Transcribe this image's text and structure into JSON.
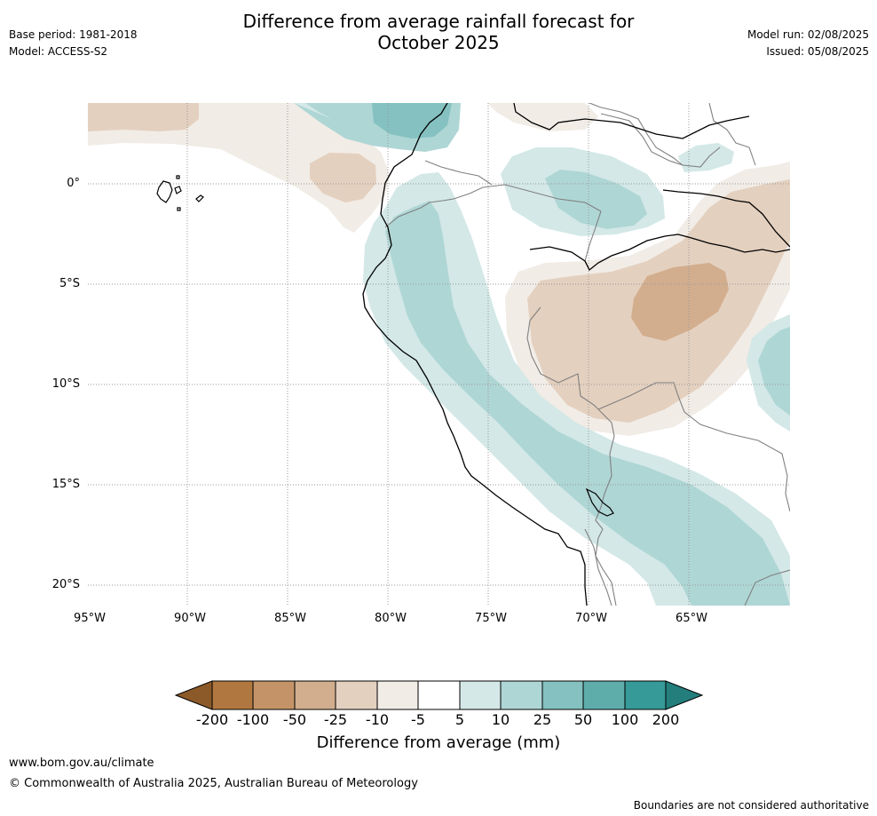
{
  "header": {
    "title_line1": "Difference from average rainfall forecast for",
    "title_line2": "October 2025",
    "base_period": "Base period: 1981-2018",
    "model": "Model: ACCESS-S2",
    "model_run": "Model run: 02/08/2025",
    "issued": "Issued: 05/08/2025"
  },
  "map": {
    "lat_labels": [
      "0°",
      "5°S",
      "10°S",
      "15°S",
      "20°S"
    ],
    "lon_labels": [
      "95°W",
      "90°W",
      "85°W",
      "80°W",
      "75°W",
      "70°W",
      "65°W"
    ],
    "colors": {
      "dry_200": "#8c5a28",
      "dry_100": "#b07840",
      "dry_50": "#c49468",
      "dry_25": "#d2ae8e",
      "dry_10": "#e4d0bf",
      "dry_5": "#f1ece6",
      "neutral": "#ffffff",
      "wet_5": "#d3e8e7",
      "wet_10": "#aed6d5",
      "wet_25": "#84c1c0",
      "wet_50": "#5eadab",
      "wet_100": "#369a98",
      "wet_200": "#237e7c",
      "coast": "#000000",
      "border": "#808080",
      "grid": "#999999"
    }
  },
  "colorbar": {
    "labels": [
      "-200",
      "-100",
      "-50",
      "-25",
      "-10",
      "-5",
      "5",
      "10",
      "25",
      "50",
      "100",
      "200"
    ],
    "title": "Difference from average (mm)"
  },
  "footer": {
    "website": "www.bom.gov.au/climate",
    "copyright": "© Commonwealth of Australia 2025, Australian Bureau of Meteorology",
    "disclaimer": "Boundaries are not considered authoritative"
  }
}
